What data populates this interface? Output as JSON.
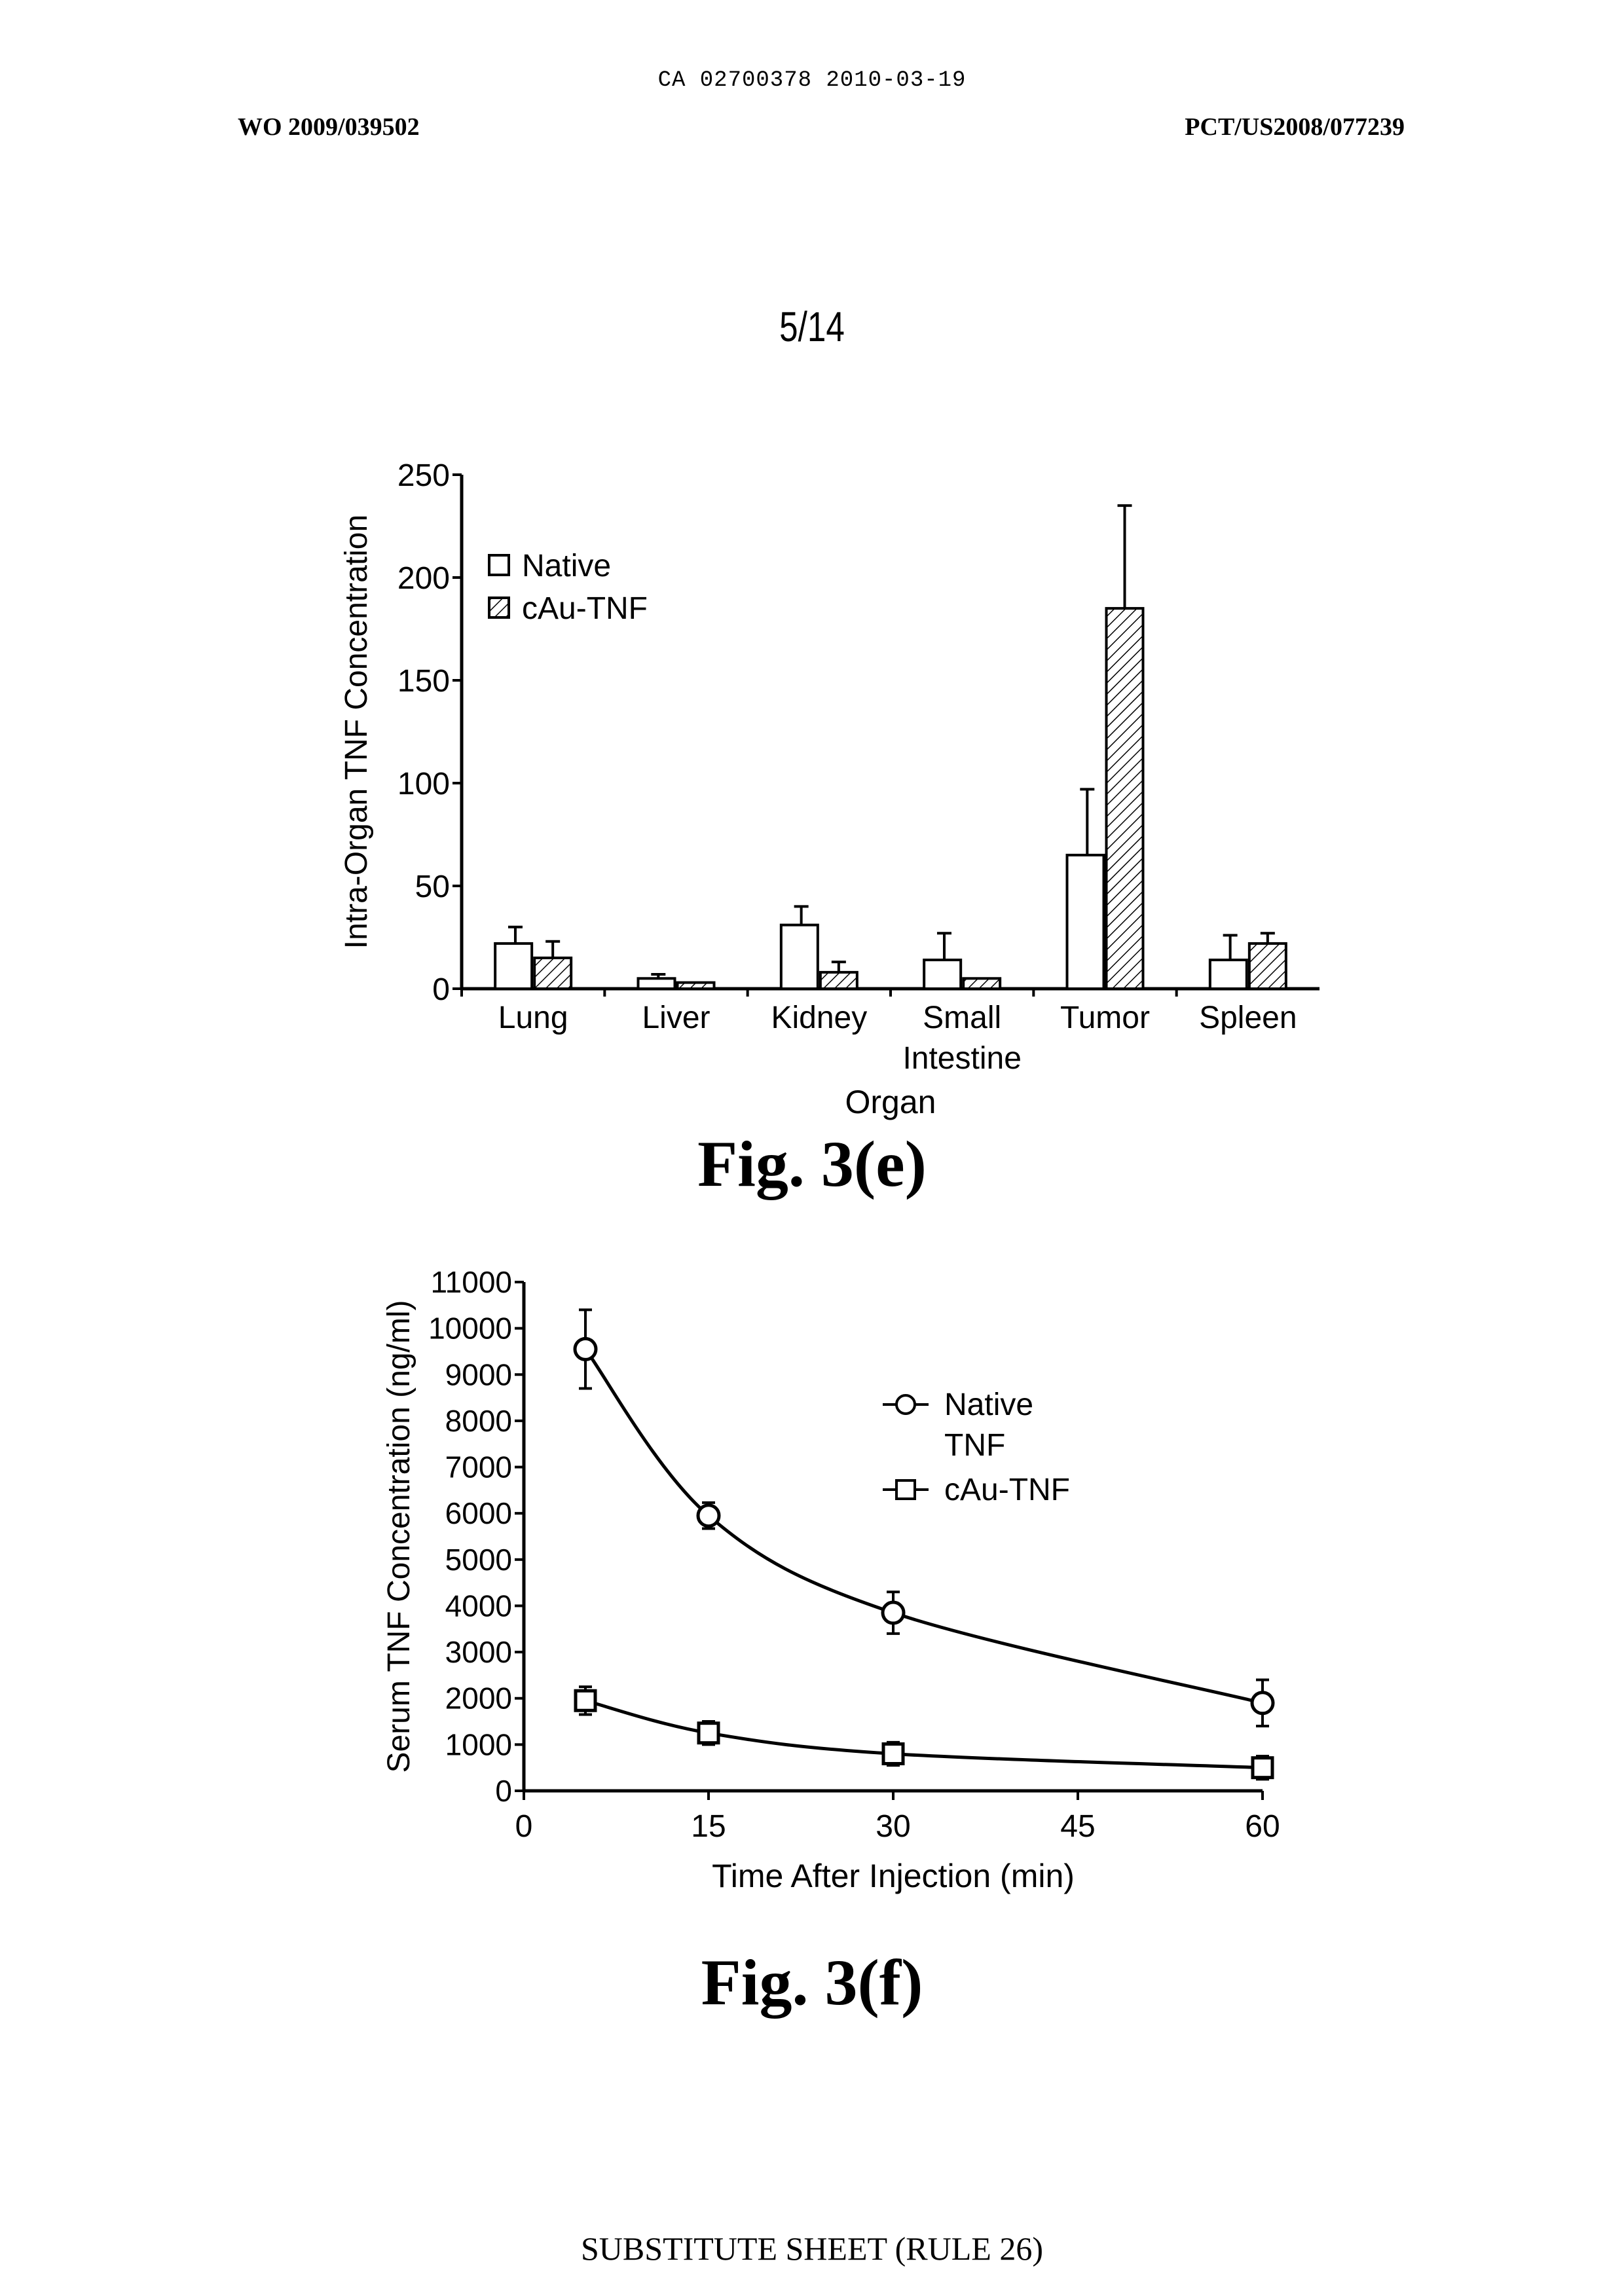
{
  "header": {
    "doc_id": "CA 02700378 2010-03-19",
    "publication_number": "WO 2009/039502",
    "application_number": "PCT/US2008/077239",
    "sheet": "5/14"
  },
  "footer": "SUBSTITUTE SHEET (RULE 26)",
  "figures": {
    "e_caption": "Fig. 3(e)",
    "f_caption": "Fig. 3(f)"
  },
  "chart_data": [
    {
      "type": "bar",
      "title": "",
      "xlabel": "Organ",
      "ylabel": "Intra-Organ TNF Concentration",
      "ylim": [
        0,
        250
      ],
      "yticks": [
        "0",
        "50",
        "100",
        "150",
        "200",
        "250"
      ],
      "categories": [
        "Lung",
        "Liver",
        "Kidney",
        "Small Intestine",
        "Tumor",
        "Spleen"
      ],
      "category_lines": [
        [
          "Lung"
        ],
        [
          "Liver"
        ],
        [
          "Kidney"
        ],
        [
          "Small",
          "Intestine"
        ],
        [
          "Tumor"
        ],
        [
          "Spleen"
        ]
      ],
      "series": [
        {
          "name": "Native",
          "fill": "open",
          "values": [
            22,
            5,
            31,
            14,
            65,
            14
          ],
          "errors": [
            8,
            2,
            9,
            13,
            32,
            12
          ]
        },
        {
          "name": "cAu-TNF",
          "fill": "hatched",
          "values": [
            15,
            3,
            8,
            5,
            185,
            22
          ],
          "errors": [
            8,
            0,
            5,
            0,
            50,
            5
          ]
        }
      ],
      "legend_position": "top-left",
      "grid": false
    },
    {
      "type": "line",
      "title": "",
      "xlabel": "Time After Injection (min)",
      "ylabel": "Serum TNF Concentration (ng/ml)",
      "xlim": [
        0,
        60
      ],
      "ylim": [
        0,
        11000
      ],
      "xticks": [
        "0",
        "15",
        "30",
        "45",
        "60"
      ],
      "yticks": [
        "0",
        "1000",
        "2000",
        "3000",
        "4000",
        "5000",
        "6000",
        "7000",
        "8000",
        "9000",
        "10000",
        "11000"
      ],
      "series": [
        {
          "name": "Native TNF",
          "name_lines": [
            "Native",
            "TNF"
          ],
          "marker": "circle",
          "x": [
            5,
            15,
            30,
            60
          ],
          "y": [
            9550,
            5950,
            3850,
            1900
          ],
          "errors": [
            850,
            280,
            450,
            500
          ]
        },
        {
          "name": "cAu-TNF",
          "name_lines": [
            "cAu-TNF"
          ],
          "marker": "square",
          "x": [
            5,
            15,
            30,
            60
          ],
          "y": [
            1950,
            1250,
            800,
            500
          ],
          "errors": [
            300,
            250,
            250,
            250
          ]
        }
      ],
      "legend_position": "top-right",
      "grid": false
    }
  ]
}
